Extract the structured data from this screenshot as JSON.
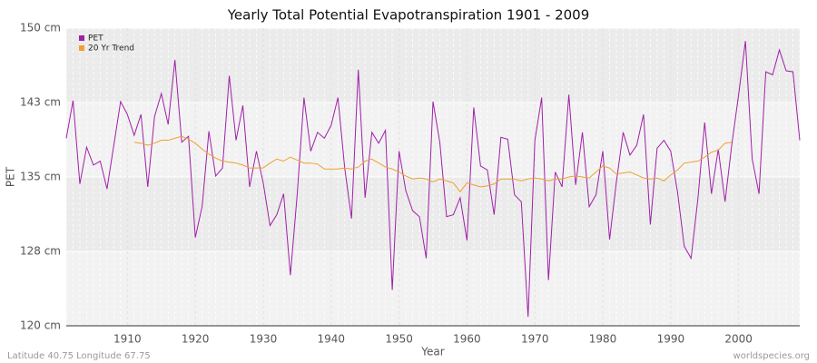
{
  "chart_data": {
    "type": "line",
    "title": "Yearly Total Potential Evapotranspiration 1901 - 2009",
    "xlabel": "Year",
    "ylabel": "PET",
    "footer_left": "Latitude 40.75 Longitude 67.75",
    "footer_right": "worldspecies.org",
    "legend": "upper left",
    "grid": true,
    "xlim": [
      1901,
      2009
    ],
    "xticks": [
      1910,
      1920,
      1930,
      1940,
      1950,
      1960,
      1970,
      1980,
      1990,
      2000
    ],
    "ylim": [
      120,
      150
    ],
    "yticks": [
      {
        "value": 120,
        "label": "120 cm"
      },
      {
        "value": 127.5,
        "label": "128 cm"
      },
      {
        "value": 135,
        "label": "135 cm"
      },
      {
        "value": 142.5,
        "label": "143 cm"
      },
      {
        "value": 150,
        "label": "150 cm"
      }
    ],
    "x": [
      1901,
      1902,
      1903,
      1904,
      1905,
      1906,
      1907,
      1908,
      1909,
      1910,
      1911,
      1912,
      1913,
      1914,
      1915,
      1916,
      1917,
      1918,
      1919,
      1920,
      1921,
      1922,
      1923,
      1924,
      1925,
      1926,
      1927,
      1928,
      1929,
      1930,
      1931,
      1932,
      1933,
      1934,
      1935,
      1936,
      1937,
      1938,
      1939,
      1940,
      1941,
      1942,
      1943,
      1944,
      1945,
      1946,
      1947,
      1948,
      1949,
      1950,
      1951,
      1952,
      1953,
      1954,
      1955,
      1956,
      1957,
      1958,
      1959,
      1960,
      1961,
      1962,
      1963,
      1964,
      1965,
      1966,
      1967,
      1968,
      1969,
      1970,
      1971,
      1972,
      1973,
      1974,
      1975,
      1976,
      1977,
      1978,
      1979,
      1980,
      1981,
      1982,
      1983,
      1984,
      1985,
      1986,
      1987,
      1988,
      1989,
      1990,
      1991,
      1992,
      1993,
      1994,
      1995,
      1996,
      1997,
      1998,
      1999,
      2000,
      2001,
      2002,
      2003,
      2004,
      2005,
      2006,
      2007,
      2008,
      2009
    ],
    "series": [
      {
        "name": "PET",
        "color": "#a020a8",
        "values": [
          138.9,
          142.7,
          134.3,
          138.0,
          136.2,
          136.6,
          133.8,
          138.2,
          142.6,
          141.3,
          139.2,
          141.3,
          134.0,
          141.1,
          143.4,
          140.3,
          146.8,
          138.5,
          139.1,
          128.9,
          132.0,
          139.6,
          135.1,
          135.9,
          145.2,
          138.7,
          142.2,
          134.0,
          137.6,
          134.4,
          130.1,
          131.2,
          133.3,
          125.1,
          133.2,
          143.0,
          137.6,
          139.5,
          138.9,
          140.2,
          143.0,
          135.9,
          130.8,
          145.8,
          132.9,
          139.5,
          138.4,
          139.7,
          123.6,
          137.6,
          133.6,
          131.6,
          131.0,
          126.8,
          142.6,
          138.5,
          131.0,
          131.2,
          132.9,
          128.6,
          142.0,
          136.1,
          135.7,
          131.2,
          139.0,
          138.8,
          133.2,
          132.5,
          120.9,
          138.7,
          143.0,
          124.6,
          135.5,
          134.0,
          143.3,
          134.2,
          139.5,
          132.0,
          133.2,
          137.6,
          128.7,
          134.5,
          139.5,
          137.2,
          138.2,
          141.3,
          130.2,
          137.9,
          138.7,
          137.6,
          133.5,
          128.0,
          126.8,
          132.8,
          140.5,
          133.3,
          137.8,
          132.5,
          138.3,
          143.3,
          148.7,
          136.8,
          133.3,
          145.6,
          145.3,
          147.8,
          145.7,
          145.6,
          138.7
        ]
      },
      {
        "name": "20 Yr Trend",
        "color": "#f0a030",
        "values": [
          null,
          null,
          null,
          null,
          null,
          null,
          null,
          null,
          null,
          null,
          138.5,
          138.4,
          138.2,
          138.4,
          138.7,
          138.7,
          138.9,
          139.1,
          138.8,
          138.4,
          137.8,
          137.3,
          136.9,
          136.6,
          136.5,
          136.4,
          136.2,
          135.9,
          135.9,
          135.9,
          136.4,
          136.8,
          136.6,
          137.0,
          136.7,
          136.4,
          136.4,
          136.3,
          135.8,
          135.8,
          135.8,
          135.9,
          135.8,
          136.0,
          136.6,
          136.8,
          136.4,
          136.0,
          135.8,
          135.5,
          135.1,
          134.8,
          134.9,
          134.8,
          134.5,
          134.8,
          134.6,
          134.4,
          133.5,
          134.4,
          134.2,
          134.0,
          134.1,
          134.3,
          134.8,
          134.8,
          134.8,
          134.6,
          134.8,
          134.9,
          134.8,
          134.6,
          134.8,
          134.8,
          135.0,
          135.1,
          135.0,
          134.9,
          135.5,
          136.1,
          135.9,
          135.3,
          135.4,
          135.5,
          135.2,
          134.9,
          134.8,
          134.9,
          134.6,
          135.2,
          135.7,
          136.4,
          136.5,
          136.6,
          137.0,
          137.5,
          137.7,
          138.4,
          138.5,
          null,
          null,
          null,
          null,
          null,
          null,
          null,
          null,
          null,
          null
        ]
      }
    ]
  }
}
